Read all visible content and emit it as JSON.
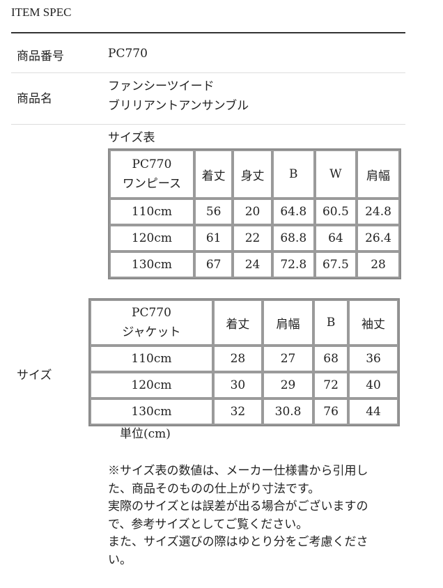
{
  "header": {
    "title": "ITEM SPEC"
  },
  "spec": {
    "product_number": {
      "label": "商品番号",
      "value": "PC770"
    },
    "product_name": {
      "label": "商品名",
      "lines": [
        "ファンシーツイード",
        "ブリリアントアンサンブル"
      ]
    },
    "size": {
      "label": "サイズ",
      "table_caption": "サイズ表",
      "unit": "単位(cm)"
    }
  },
  "onepiece_table": {
    "header": [
      "PC770",
      "ワンピース"
    ],
    "columns": [
      "着丈",
      "身丈",
      "B",
      "W",
      "肩幅"
    ],
    "rows": [
      [
        "110cm",
        "56",
        "20",
        "64.8",
        "60.5",
        "24.8"
      ],
      [
        "120cm",
        "61",
        "22",
        "68.8",
        "64",
        "26.4"
      ],
      [
        "130cm",
        "67",
        "24",
        "72.8",
        "67.5",
        "28"
      ]
    ]
  },
  "jacket_table": {
    "header": [
      "PC770",
      "ジャケット"
    ],
    "columns": [
      "着丈",
      "肩幅",
      "B",
      "袖丈"
    ],
    "rows": [
      [
        "110cm",
        "28",
        "27",
        "68",
        "36"
      ],
      [
        "120cm",
        "30",
        "29",
        "72",
        "40"
      ],
      [
        "130cm",
        "32",
        "30.8",
        "76",
        "44"
      ]
    ]
  },
  "notes": [
    "※サイズ表の数値は、メーカー仕様書から引用し",
    "た、商品そのものの仕上がり寸法です。",
    "実際のサイズとは誤差が出る場合がございますの",
    "で、参考サイズとしてご覧ください。",
    "また、サイズ選びの際はゆとり分をご考慮くださ",
    "い。"
  ]
}
